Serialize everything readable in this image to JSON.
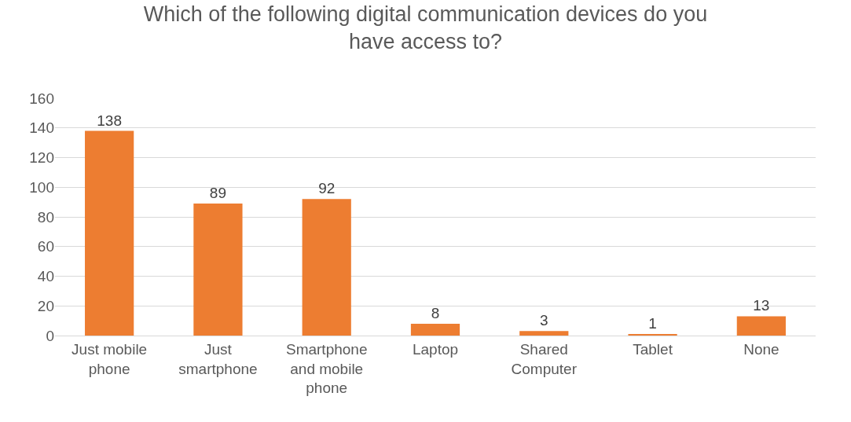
{
  "chart_data": {
    "type": "bar",
    "title": "Which of the following digital communication devices do you have access to?",
    "categories": [
      "Just mobile phone",
      "Just smartphone",
      "Smartphone and mobile phone",
      "Laptop",
      "Shared Computer",
      "Tablet",
      "None"
    ],
    "values": [
      138,
      89,
      92,
      8,
      3,
      1,
      13
    ],
    "color": "#ed7d31",
    "ylim": [
      0,
      160
    ],
    "yticks": [
      0,
      20,
      40,
      60,
      80,
      100,
      120,
      140,
      160
    ],
    "grid": "y",
    "data_labels": true,
    "legend": false
  }
}
